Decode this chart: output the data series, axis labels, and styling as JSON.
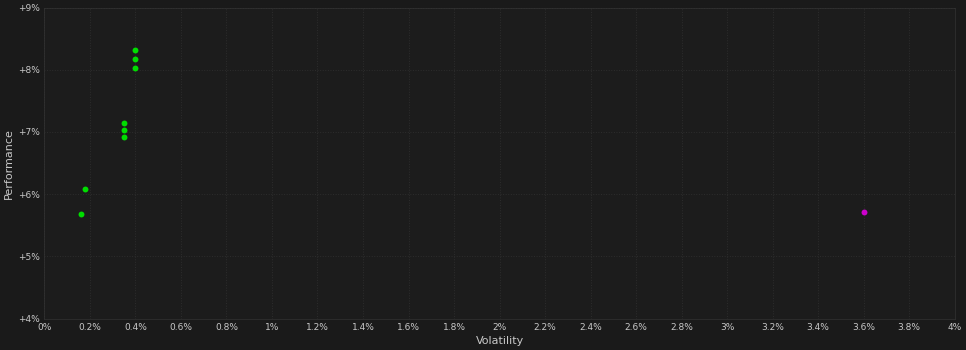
{
  "background_color": "#1a1a1a",
  "plot_bg_color": "#1c1c1c",
  "grid_color": "#2d2d2d",
  "text_color": "#c8c8c8",
  "xlabel": "Volatility",
  "ylabel": "Performance",
  "xlim": [
    0.0,
    0.04
  ],
  "ylim": [
    0.04,
    0.09
  ],
  "xtick_vals": [
    0.0,
    0.002,
    0.004,
    0.006,
    0.008,
    0.01,
    0.012,
    0.014,
    0.016,
    0.018,
    0.02,
    0.022,
    0.024,
    0.026,
    0.028,
    0.03,
    0.032,
    0.034,
    0.036,
    0.038,
    0.04
  ],
  "xtick_labels": [
    "0%",
    "0.2%",
    "0.4%",
    "0.6%",
    "0.8%",
    "1%",
    "1.2%",
    "1.4%",
    "1.6%",
    "1.8%",
    "2%",
    "2.2%",
    "2.4%",
    "2.6%",
    "2.8%",
    "3%",
    "3.2%",
    "3.4%",
    "3.6%",
    "3.8%",
    "4%"
  ],
  "ytick_vals": [
    0.04,
    0.05,
    0.06,
    0.07,
    0.08,
    0.09
  ],
  "ytick_labels": [
    "+4%",
    "+5%",
    "+6%",
    "+7%",
    "+8%",
    "+9%"
  ],
  "green_points": [
    [
      0.004,
      0.0832
    ],
    [
      0.004,
      0.0818
    ],
    [
      0.004,
      0.0803
    ],
    [
      0.0035,
      0.0715
    ],
    [
      0.0035,
      0.0703
    ],
    [
      0.0035,
      0.0692
    ],
    [
      0.0018,
      0.0608
    ],
    [
      0.0016,
      0.0568
    ]
  ],
  "magenta_points": [
    [
      0.036,
      0.0572
    ]
  ],
  "green_color": "#00dd00",
  "magenta_color": "#cc00cc",
  "marker_size": 18
}
